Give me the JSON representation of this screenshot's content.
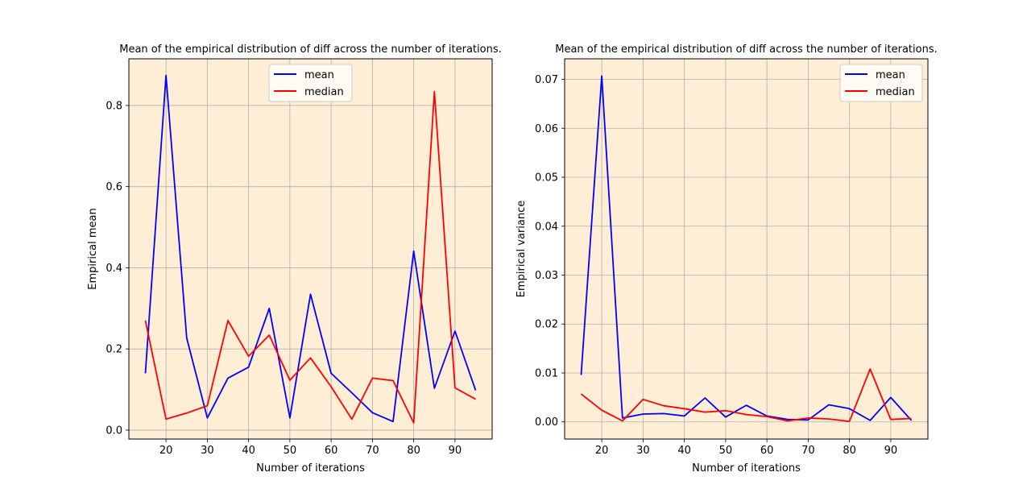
{
  "chart_data": [
    {
      "type": "line",
      "title": "Mean of the empirical distribution of diff across the number of iterations.",
      "xlabel": "Number of iterations",
      "ylabel": "Empirical mean",
      "x": [
        15,
        20,
        25,
        30,
        35,
        40,
        45,
        50,
        55,
        60,
        65,
        70,
        75,
        80,
        85,
        90,
        95
      ],
      "xlim": [
        11,
        99
      ],
      "ylim": [
        -0.022,
        0.915
      ],
      "xticks": [
        20,
        30,
        40,
        50,
        60,
        70,
        80,
        90
      ],
      "xtick_labels": [
        "20",
        "30",
        "40",
        "50",
        "60",
        "70",
        "80",
        "90"
      ],
      "yticks": [
        0.0,
        0.2,
        0.4,
        0.6,
        0.8
      ],
      "ytick_labels": [
        "0.0",
        "0.2",
        "0.4",
        "0.6",
        "0.8"
      ],
      "grid": true,
      "legend_position": "top-center",
      "background": "#ffeed6",
      "series": [
        {
          "name": "mean",
          "color": "#0000ff",
          "values": [
            0.14,
            0.874,
            0.227,
            0.03,
            0.128,
            0.155,
            0.3,
            0.03,
            0.335,
            0.14,
            0.092,
            0.043,
            0.021,
            0.441,
            0.103,
            0.244,
            0.098
          ]
        },
        {
          "name": "median",
          "color": "#ff0000",
          "values": [
            0.27,
            0.027,
            0.042,
            0.06,
            0.27,
            0.182,
            0.234,
            0.123,
            0.178,
            0.107,
            0.027,
            0.128,
            0.122,
            0.018,
            0.834,
            0.104,
            0.076
          ]
        }
      ]
    },
    {
      "type": "line",
      "title": "Mean of the empirical distribution of diff across the number of iterations.",
      "xlabel": "Number of iterations",
      "ylabel": "Empirical variance",
      "x": [
        15,
        20,
        25,
        30,
        35,
        40,
        45,
        50,
        55,
        60,
        65,
        70,
        75,
        80,
        85,
        90,
        95
      ],
      "xlim": [
        11,
        99
      ],
      "ylim": [
        -0.0035,
        0.0742
      ],
      "xticks": [
        20,
        30,
        40,
        50,
        60,
        70,
        80,
        90
      ],
      "xtick_labels": [
        "20",
        "30",
        "40",
        "50",
        "60",
        "70",
        "80",
        "90"
      ],
      "yticks": [
        0.0,
        0.01,
        0.02,
        0.03,
        0.04,
        0.05,
        0.06,
        0.07
      ],
      "ytick_labels": [
        "0.00",
        "0.01",
        "0.02",
        "0.03",
        "0.04",
        "0.05",
        "0.06",
        "0.07"
      ],
      "grid": true,
      "legend_position": "top-right",
      "background": "#ffeed6",
      "series": [
        {
          "name": "mean",
          "color": "#0000ff",
          "values": [
            0.0096,
            0.0707,
            0.0008,
            0.0016,
            0.0017,
            0.0012,
            0.0049,
            0.001,
            0.0034,
            0.0012,
            0.0005,
            0.0004,
            0.0035,
            0.0027,
            0.0003,
            0.005,
            0.0003
          ]
        },
        {
          "name": "median",
          "color": "#ff0000",
          "values": [
            0.0057,
            0.0024,
            0.0002,
            0.0046,
            0.0033,
            0.0027,
            0.002,
            0.0023,
            0.0015,
            0.0011,
            0.0002,
            0.0008,
            0.0006,
            0.0001,
            0.0108,
            0.0005,
            0.0007
          ]
        }
      ]
    }
  ]
}
